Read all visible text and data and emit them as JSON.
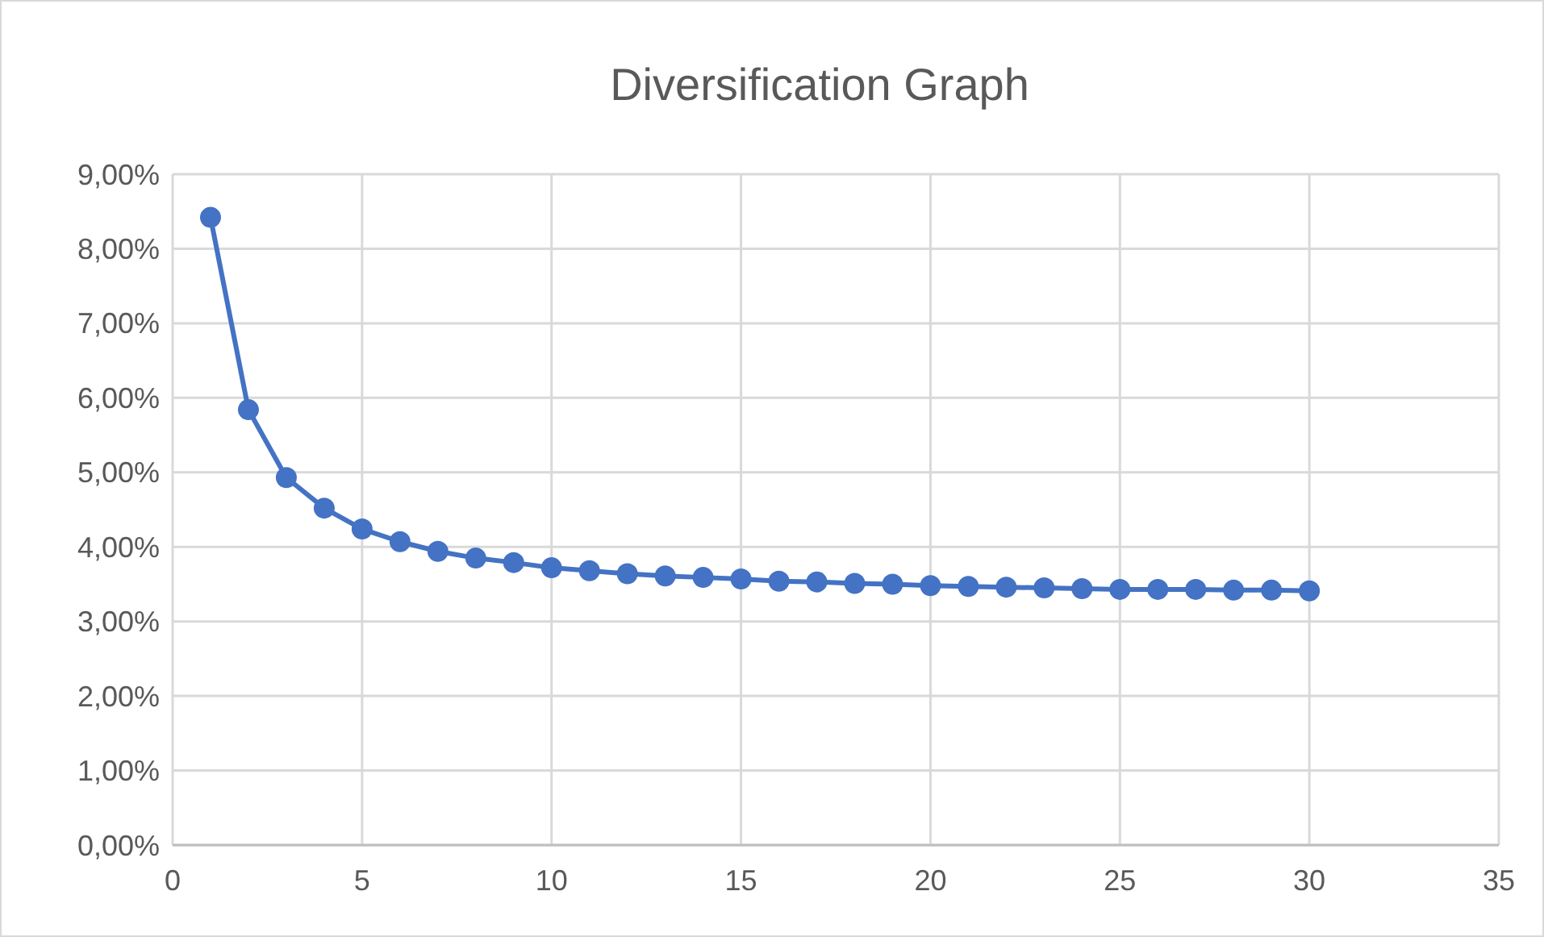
{
  "chart_data": {
    "type": "line",
    "title": "Diversification Graph",
    "x": [
      1,
      2,
      3,
      4,
      5,
      6,
      7,
      8,
      9,
      10,
      11,
      12,
      13,
      14,
      15,
      16,
      17,
      18,
      19,
      20,
      21,
      22,
      23,
      24,
      25,
      26,
      27,
      28,
      29,
      30
    ],
    "series": [
      {
        "color": "#4472c4",
        "values": [
          8.42,
          5.84,
          4.93,
          4.52,
          4.24,
          4.07,
          3.94,
          3.85,
          3.79,
          3.72,
          3.68,
          3.64,
          3.61,
          3.59,
          3.57,
          3.54,
          3.53,
          3.51,
          3.5,
          3.48,
          3.47,
          3.46,
          3.45,
          3.44,
          3.43,
          3.43,
          3.43,
          3.42,
          3.42,
          3.41
        ]
      }
    ],
    "xlim": [
      0,
      35
    ],
    "xticks": [
      0,
      5,
      10,
      15,
      20,
      25,
      30,
      35
    ],
    "ylim": [
      0,
      9
    ],
    "yticks": [
      {
        "value": 0,
        "label": "0,00%"
      },
      {
        "value": 1,
        "label": "1,00%"
      },
      {
        "value": 2,
        "label": "2,00%"
      },
      {
        "value": 3,
        "label": "3,00%"
      },
      {
        "value": 4,
        "label": "4,00%"
      },
      {
        "value": 5,
        "label": "5,00%"
      },
      {
        "value": 6,
        "label": "6,00%"
      },
      {
        "value": 7,
        "label": "7,00%"
      },
      {
        "value": 8,
        "label": "8,00%"
      },
      {
        "value": 9,
        "label": "9,00%"
      }
    ],
    "grid": true,
    "marker": "circle",
    "line_style": "solid"
  }
}
